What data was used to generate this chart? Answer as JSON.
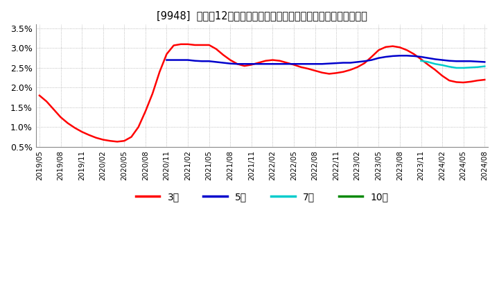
{
  "title": "[9948]  売上高12か月移動合計の対前年同期増減率の標準偏差の推移",
  "ylim": [
    0.005,
    0.036
  ],
  "yticks": [
    0.005,
    0.01,
    0.015,
    0.02,
    0.025,
    0.03,
    0.035
  ],
  "ytick_labels": [
    "0.5%",
    "1.0%",
    "1.5%",
    "2.0%",
    "2.5%",
    "3.0%",
    "3.5%"
  ],
  "background_color": "#ffffff",
  "plot_bg_color": "#ffffff",
  "grid_color": "#aaaaaa",
  "legend_entries": [
    "3年",
    "5年",
    "7年",
    "10年"
  ],
  "legend_colors": [
    "#ff0000",
    "#0000cc",
    "#00cccc",
    "#008800"
  ],
  "series": {
    "3yr": {
      "color": "#ff0000",
      "y": [
        0.018,
        0.0165,
        0.0145,
        0.0125,
        0.011,
        0.0098,
        0.0088,
        0.008,
        0.0073,
        0.0068,
        0.0065,
        0.0063,
        0.0065,
        0.0075,
        0.01,
        0.014,
        0.0185,
        0.024,
        0.0285,
        0.0307,
        0.031,
        0.031,
        0.0308,
        0.0308,
        0.0308,
        0.0298,
        0.0283,
        0.027,
        0.026,
        0.0255,
        0.0258,
        0.0263,
        0.0268,
        0.027,
        0.0268,
        0.0263,
        0.0258,
        0.0252,
        0.0248,
        0.0243,
        0.0238,
        0.0235,
        0.0237,
        0.024,
        0.0245,
        0.0252,
        0.0262,
        0.0278,
        0.0295,
        0.0303,
        0.0305,
        0.0302,
        0.0295,
        0.0285,
        0.0272,
        0.0258,
        0.0245,
        0.023,
        0.0218,
        0.0214,
        0.0213,
        0.0215,
        0.0218,
        0.022
      ]
    },
    "5yr": {
      "color": "#0000cc",
      "y": [
        null,
        null,
        null,
        null,
        null,
        null,
        null,
        null,
        null,
        null,
        null,
        null,
        null,
        null,
        null,
        null,
        null,
        null,
        0.027,
        0.027,
        0.027,
        0.027,
        0.0268,
        0.0267,
        0.0267,
        0.0265,
        0.0263,
        0.0261,
        0.026,
        0.026,
        0.026,
        0.026,
        0.026,
        0.026,
        0.026,
        0.026,
        0.026,
        0.026,
        0.026,
        0.026,
        0.026,
        0.0261,
        0.0262,
        0.0263,
        0.0263,
        0.0265,
        0.0267,
        0.027,
        0.0275,
        0.0278,
        0.028,
        0.0281,
        0.0281,
        0.028,
        0.0278,
        0.0275,
        0.0272,
        0.027,
        0.0268,
        0.0267,
        0.0267,
        0.0267,
        0.0266,
        0.0265
      ]
    },
    "7yr": {
      "color": "#00cccc",
      "y": [
        null,
        null,
        null,
        null,
        null,
        null,
        null,
        null,
        null,
        null,
        null,
        null,
        null,
        null,
        null,
        null,
        null,
        null,
        null,
        null,
        null,
        null,
        null,
        null,
        null,
        null,
        null,
        null,
        null,
        null,
        null,
        null,
        null,
        null,
        null,
        null,
        null,
        null,
        null,
        null,
        null,
        null,
        null,
        null,
        null,
        null,
        null,
        null,
        null,
        null,
        null,
        null,
        null,
        null,
        0.0268,
        0.0265,
        0.026,
        0.0257,
        0.0253,
        0.025,
        0.025,
        0.0251,
        0.0252,
        0.0254
      ]
    },
    "10yr": {
      "color": "#008800",
      "y": [
        null,
        null,
        null,
        null,
        null,
        null,
        null,
        null,
        null,
        null,
        null,
        null,
        null,
        null,
        null,
        null,
        null,
        null,
        null,
        null,
        null,
        null,
        null,
        null,
        null,
        null,
        null,
        null,
        null,
        null,
        null,
        null,
        null,
        null,
        null,
        null,
        null,
        null,
        null,
        null,
        null,
        null,
        null,
        null,
        null,
        null,
        null,
        null,
        null,
        null,
        null,
        null,
        null,
        null,
        null,
        null,
        null,
        null,
        null,
        null,
        null,
        null,
        null,
        null
      ]
    }
  },
  "xtick_positions": [
    0,
    3,
    6,
    9,
    12,
    15,
    18,
    21,
    24,
    27,
    30,
    33,
    36,
    39,
    42,
    45,
    48,
    51,
    54,
    57,
    60,
    63
  ],
  "xtick_labels": [
    "2019/05",
    "2019/08",
    "2019/11",
    "2020/02",
    "2020/05",
    "2020/08",
    "2020/11",
    "2021/02",
    "2021/05",
    "2021/08",
    "2021/11",
    "2022/02",
    "2022/05",
    "2022/08",
    "2022/11",
    "2023/02",
    "2023/05",
    "2023/08",
    "2023/11",
    "2024/02",
    "2024/05",
    "2024/08"
  ]
}
